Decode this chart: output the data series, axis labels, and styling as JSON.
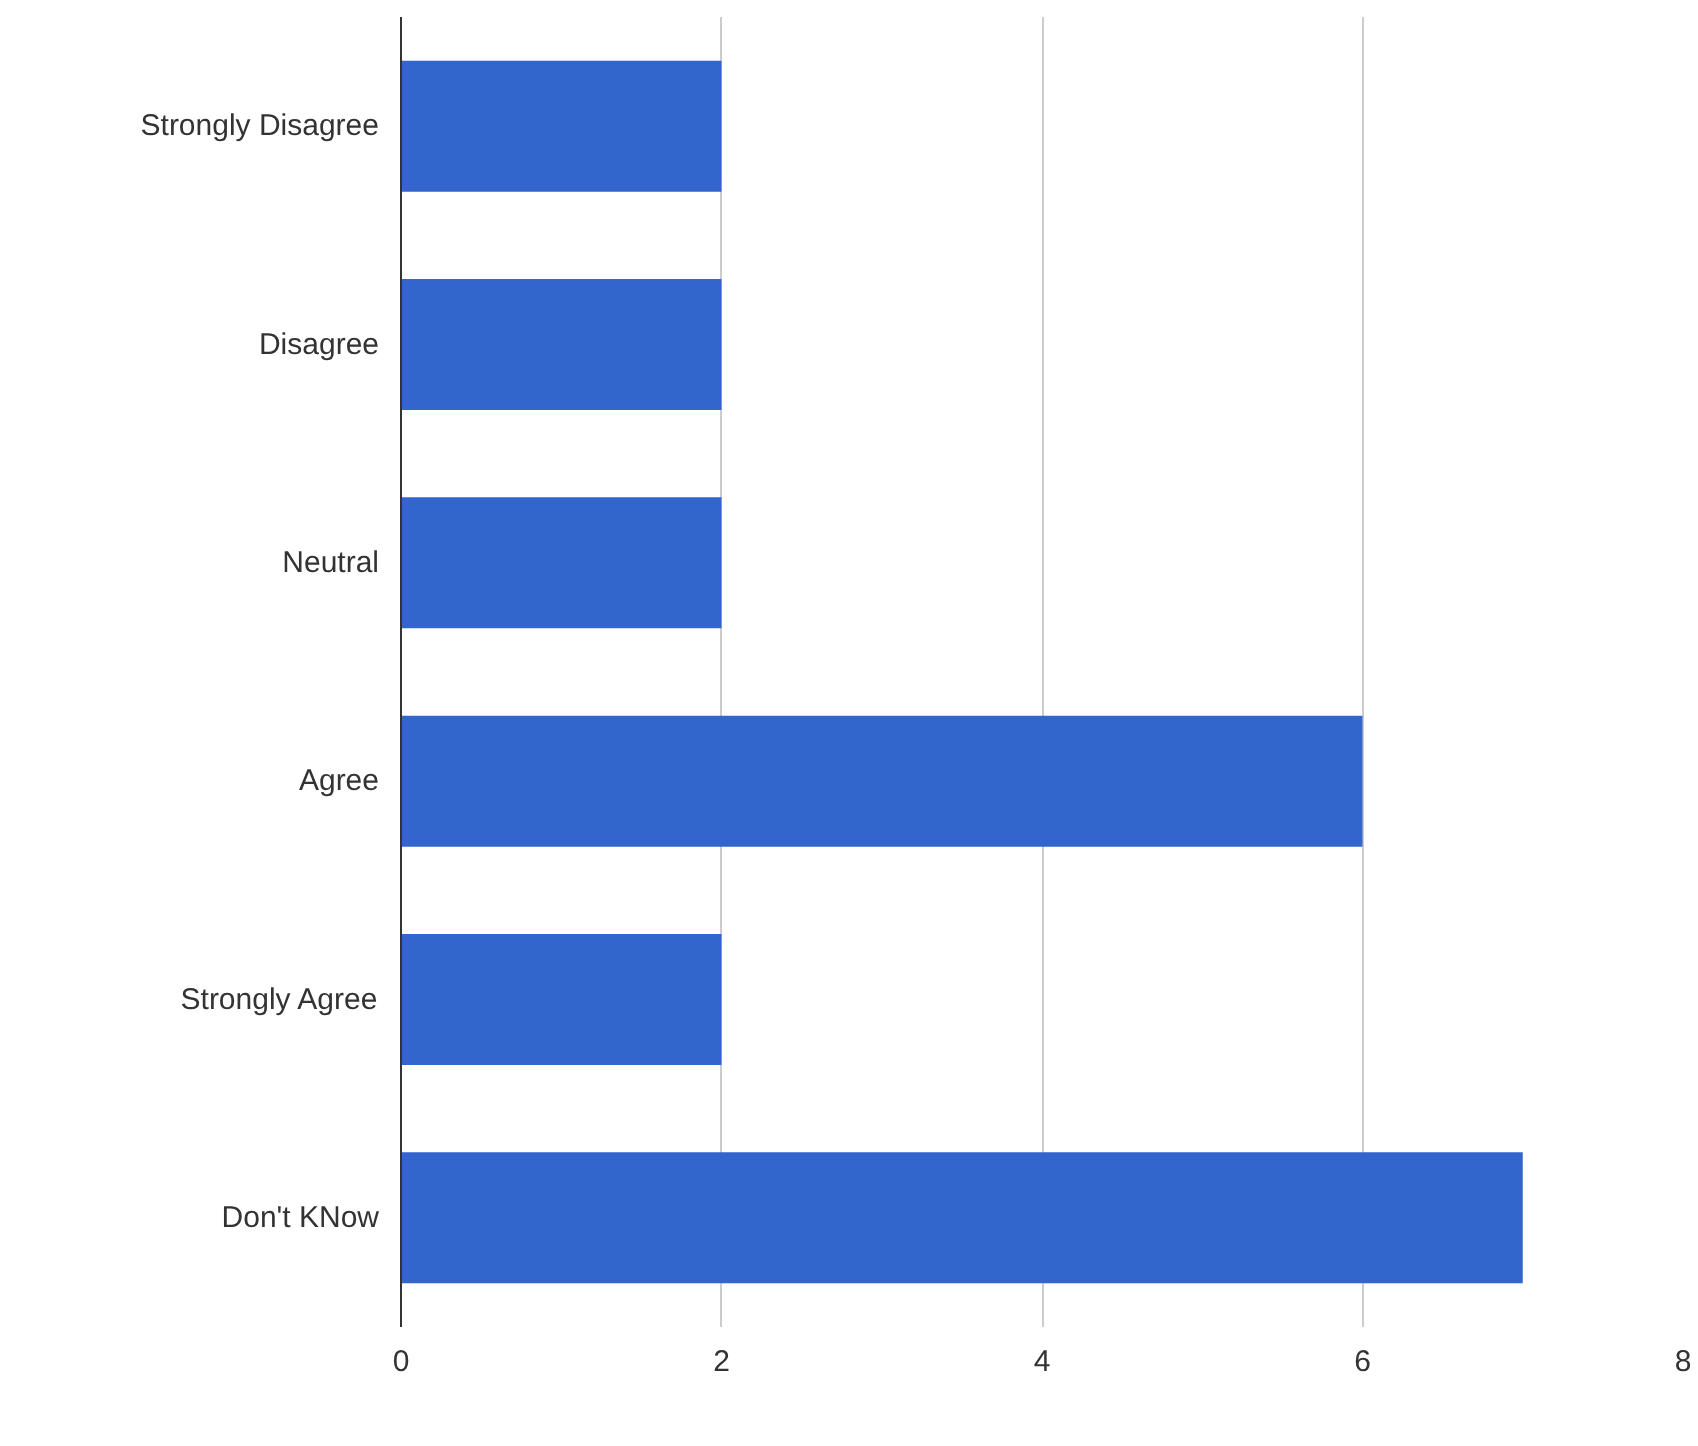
{
  "chart_data": {
    "type": "bar",
    "orientation": "horizontal",
    "categories": [
      "Strongly Disagree",
      "Disagree",
      "Neutral",
      "Agree",
      "Strongly Agree",
      "Don't KNow"
    ],
    "values": [
      2,
      2,
      2,
      6,
      2,
      7
    ],
    "color": "#3366cc",
    "xlim": [
      0,
      8
    ],
    "xticks": [
      0,
      2,
      4,
      6,
      8
    ],
    "grid": "x"
  }
}
